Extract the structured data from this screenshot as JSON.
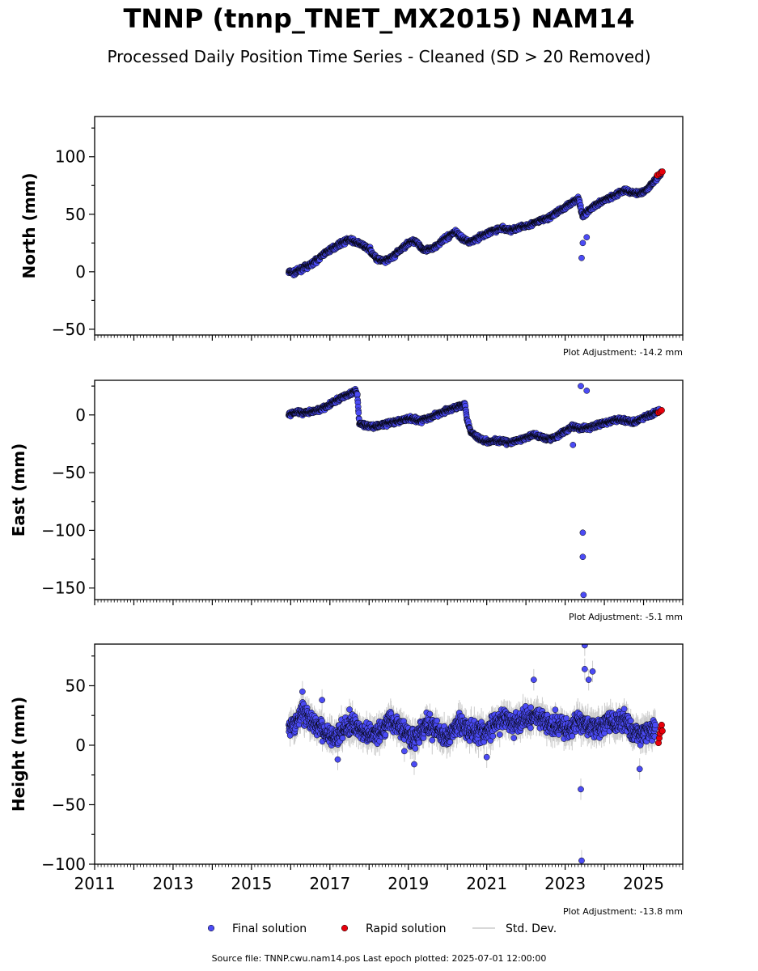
{
  "title": "TNNP (tnnp_TNET_MX2015) NAM14",
  "subtitle": "Processed Daily Position Time Series - Cleaned (SD > 20 Removed)",
  "footer": "Source file: TNNP.cwu.nam14.pos  Last epoch plotted: 2025-07-01 12:00:00",
  "legend": {
    "final": "Final solution",
    "rapid": "Rapid solution",
    "std": "Std. Dev."
  },
  "colors": {
    "final": "#4B4BF5",
    "rapid": "#E8000B",
    "std": "#CCCCCC",
    "edge": "#000000"
  },
  "chart_data": [
    {
      "type": "scatter",
      "ylabel": "North (mm)",
      "adjustment": "Plot Adjustment: -14.2 mm",
      "xlim": [
        2011,
        2026
      ],
      "ylim": [
        -55,
        135
      ],
      "yticks": [
        -50,
        0,
        50,
        100
      ],
      "ytick_labels": [
        "−50",
        "0",
        "50",
        "100"
      ],
      "series": [
        {
          "name": "Final solution",
          "x": [
            2015.95,
            2016.1,
            2016.3,
            2016.5,
            2016.7,
            2016.9,
            2017.1,
            2017.3,
            2017.5,
            2017.7,
            2017.85,
            2018.0,
            2018.2,
            2018.4,
            2018.6,
            2018.8,
            2019.0,
            2019.2,
            2019.4,
            2019.6,
            2019.8,
            2020.0,
            2020.2,
            2020.4,
            2020.6,
            2020.8,
            2021.0,
            2021.2,
            2021.4,
            2021.6,
            2021.8,
            2022.0,
            2022.2,
            2022.4,
            2022.6,
            2022.8,
            2023.0,
            2023.2,
            2023.35,
            2023.45,
            2023.55,
            2023.7,
            2023.9,
            2024.1,
            2024.3,
            2024.5,
            2024.7,
            2024.9,
            2025.1,
            2025.3,
            2025.45
          ],
          "y": [
            0,
            -1,
            3,
            6,
            11,
            17,
            21,
            25,
            28,
            25,
            23,
            20,
            11,
            9,
            13,
            19,
            25,
            27,
            18,
            20,
            25,
            30,
            35,
            28,
            26,
            30,
            33,
            36,
            38,
            36,
            38,
            40,
            42,
            45,
            47,
            52,
            56,
            61,
            63,
            48,
            52,
            56,
            60,
            64,
            67,
            71,
            69,
            68,
            72,
            80,
            86
          ]
        },
        {
          "name": "Final solution outliers",
          "x": [
            2023.42,
            2023.45,
            2023.55
          ],
          "y": [
            12,
            25,
            30
          ]
        },
        {
          "name": "Rapid solution",
          "x": [
            2025.35,
            2025.4,
            2025.45,
            2025.48
          ],
          "y": [
            84,
            85,
            86,
            87
          ]
        }
      ]
    },
    {
      "type": "scatter",
      "ylabel": "East (mm)",
      "adjustment": "Plot Adjustment: -5.1 mm",
      "xlim": [
        2011,
        2026
      ],
      "ylim": [
        -160,
        30
      ],
      "yticks": [
        -150,
        -100,
        -50,
        0
      ],
      "ytick_labels": [
        "−150",
        "−100",
        "−50",
        "0"
      ],
      "series": [
        {
          "name": "Final solution",
          "x": [
            2015.95,
            2016.1,
            2016.3,
            2016.5,
            2016.7,
            2016.9,
            2017.1,
            2017.3,
            2017.5,
            2017.65,
            2017.7,
            2017.75,
            2017.9,
            2018.1,
            2018.3,
            2018.5,
            2018.7,
            2018.9,
            2019.1,
            2019.3,
            2019.5,
            2019.7,
            2019.9,
            2020.1,
            2020.3,
            2020.45,
            2020.5,
            2020.6,
            2020.8,
            2021.0,
            2021.2,
            2021.4,
            2021.6,
            2021.8,
            2022.0,
            2022.2,
            2022.4,
            2022.6,
            2022.8,
            2023.0,
            2023.2,
            2023.4,
            2023.6,
            2023.8,
            2024.0,
            2024.2,
            2024.4,
            2024.6,
            2024.8,
            2025.0,
            2025.2,
            2025.4
          ],
          "y": [
            0,
            3,
            2,
            3,
            4,
            7,
            11,
            15,
            18,
            21,
            17,
            -7,
            -9,
            -10,
            -9,
            -7,
            -6,
            -4,
            -3,
            -5,
            -3,
            0,
            3,
            5,
            8,
            9,
            -4,
            -15,
            -20,
            -23,
            -22,
            -23,
            -24,
            -22,
            -20,
            -17,
            -19,
            -21,
            -18,
            -14,
            -10,
            -12,
            -11,
            -9,
            -7,
            -5,
            -4,
            -5,
            -6,
            -2,
            0,
            4
          ]
        },
        {
          "name": "Final solution outliers",
          "x": [
            2023.4,
            2023.45,
            2023.45,
            2023.47,
            2023.55,
            2023.2
          ],
          "y": [
            25,
            -102,
            -123,
            -156,
            21,
            -26
          ]
        },
        {
          "name": "Rapid solution",
          "x": [
            2025.38,
            2025.42,
            2025.46
          ],
          "y": [
            2,
            3,
            4
          ]
        }
      ]
    },
    {
      "type": "scatter",
      "ylabel": "Height (mm)",
      "adjustment": "Plot Adjustment: -13.8 mm",
      "xlim": [
        2011,
        2026
      ],
      "ylim": [
        -100,
        85
      ],
      "yticks": [
        -100,
        -50,
        0,
        50
      ],
      "ytick_labels": [
        "−100",
        "−50",
        "0",
        "50"
      ],
      "xticks": [
        2011,
        2013,
        2015,
        2017,
        2019,
        2021,
        2023,
        2025
      ],
      "series": [
        {
          "name": "Final solution",
          "x": [
            2015.95,
            2016.1,
            2016.3,
            2016.5,
            2016.7,
            2016.9,
            2017.1,
            2017.3,
            2017.5,
            2017.7,
            2017.9,
            2018.1,
            2018.3,
            2018.5,
            2018.7,
            2018.9,
            2019.1,
            2019.3,
            2019.5,
            2019.7,
            2019.9,
            2020.1,
            2020.3,
            2020.5,
            2020.7,
            2020.9,
            2021.1,
            2021.3,
            2021.5,
            2021.7,
            2021.9,
            2022.1,
            2022.3,
            2022.5,
            2022.7,
            2022.9,
            2023.1,
            2023.3,
            2023.5,
            2023.7,
            2023.9,
            2024.1,
            2024.3,
            2024.5,
            2024.7,
            2024.9,
            2025.1,
            2025.3
          ],
          "y": [
            12,
            18,
            28,
            22,
            15,
            10,
            8,
            12,
            18,
            14,
            10,
            8,
            12,
            22,
            18,
            12,
            5,
            10,
            18,
            14,
            6,
            10,
            18,
            14,
            12,
            10,
            15,
            20,
            22,
            18,
            20,
            24,
            26,
            20,
            18,
            16,
            14,
            20,
            18,
            16,
            14,
            20,
            18,
            22,
            12,
            10,
            12,
            14
          ]
        },
        {
          "name": "Final solution outliers",
          "x": [
            2016.3,
            2016.8,
            2017.2,
            2018.9,
            2019.15,
            2022.2,
            2023.4,
            2023.42,
            2023.5,
            2023.5,
            2023.6,
            2023.7,
            2024.9,
            2017.5,
            2021.0
          ],
          "y": [
            45,
            38,
            -12,
            -5,
            -16,
            55,
            -37,
            -97,
            84,
            64,
            55,
            62,
            -20,
            30,
            -10
          ]
        },
        {
          "name": "Rapid solution",
          "x": [
            2025.38,
            2025.4,
            2025.42,
            2025.44,
            2025.46,
            2025.48
          ],
          "y": [
            2,
            6,
            10,
            14,
            17,
            12
          ]
        }
      ]
    }
  ]
}
